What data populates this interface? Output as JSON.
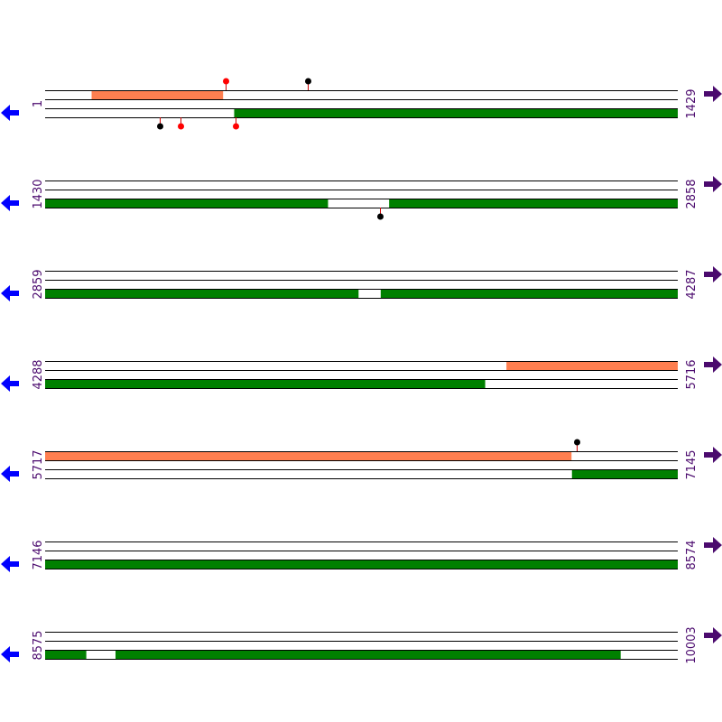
{
  "colors": {
    "forward_feature": "#ff7f50",
    "reverse_feature": "#008000",
    "forward_arrow": "#4b0a6e",
    "reverse_arrow": "#0000ff",
    "site_red": "#ff0000",
    "site_black": "#000000",
    "label": "#4b0a6e"
  },
  "icons": {
    "forward": "arrow-right-icon",
    "reverse": "arrow-left-icon"
  },
  "rows": [
    {
      "start": "1",
      "end": "1429",
      "start_bp": 1,
      "end_bp": 1429,
      "forward": [
        [
          106,
          402
        ]
      ],
      "reverse": [
        [
          428,
          1429
        ]
      ],
      "forward_sites": [
        {
          "bp": 408,
          "color": "red"
        },
        {
          "bp": 594,
          "color": "black"
        }
      ],
      "reverse_sites": [
        {
          "bp": 260,
          "color": "black"
        },
        {
          "bp": 307,
          "color": "red"
        },
        {
          "bp": 432,
          "color": "red"
        }
      ]
    },
    {
      "start": "1430",
      "end": "2858",
      "start_bp": 1430,
      "end_bp": 2858,
      "forward": [],
      "reverse": [
        [
          1430,
          2068
        ],
        [
          2207,
          2858
        ]
      ],
      "forward_sites": [],
      "reverse_sites": [
        {
          "bp": 2186,
          "color": "black"
        }
      ]
    },
    {
      "start": "2859",
      "end": "4287",
      "start_bp": 2859,
      "end_bp": 4287,
      "forward": [],
      "reverse": [
        [
          2859,
          3566
        ],
        [
          3617,
          4287
        ]
      ],
      "forward_sites": [],
      "reverse_sites": []
    },
    {
      "start": "4288",
      "end": "5716",
      "start_bp": 4288,
      "end_bp": 5716,
      "forward": [
        [
          5330,
          5716
        ]
      ],
      "reverse": [
        [
          4288,
          5281
        ]
      ],
      "forward_sites": [],
      "reverse_sites": []
    },
    {
      "start": "5717",
      "end": "7145",
      "start_bp": 5717,
      "end_bp": 7145,
      "forward": [
        [
          5717,
          6905
        ]
      ],
      "reverse": [
        [
          6907,
          7145
        ]
      ],
      "forward_sites": [
        {
          "bp": 6917,
          "color": "black"
        }
      ],
      "reverse_sites": []
    },
    {
      "start": "7146",
      "end": "8574",
      "start_bp": 7146,
      "end_bp": 8574,
      "forward": [],
      "reverse": [
        [
          7146,
          8574
        ]
      ],
      "forward_sites": [],
      "reverse_sites": []
    },
    {
      "start": "8575",
      "end": "10003",
      "start_bp": 8575,
      "end_bp": 10003,
      "forward": [],
      "reverse": [
        [
          8575,
          8667
        ],
        [
          8734,
          9874
        ]
      ],
      "forward_sites": [],
      "reverse_sites": []
    }
  ]
}
